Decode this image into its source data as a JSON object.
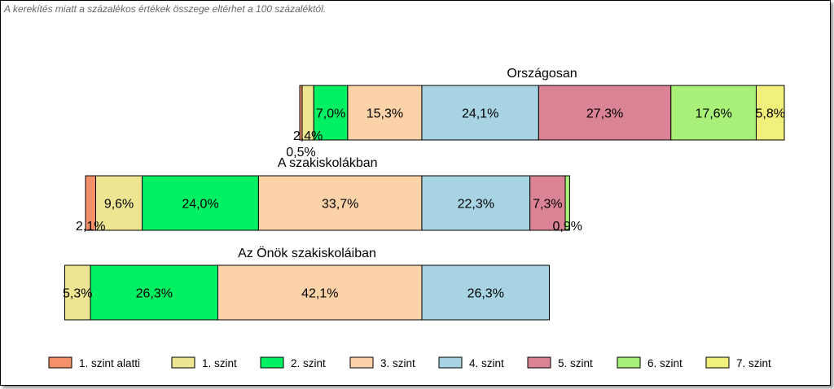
{
  "note": "A kerekítés miatt a  százalékos értékek összege eltérhet a 100 százaléktól.",
  "chart_data": {
    "type": "bar",
    "orientation": "horizontal-stacked",
    "legend_position": "bottom",
    "categories": [
      "Országosan",
      "A szakiskolákban",
      "Az Önök szakiskoláiban"
    ],
    "series": [
      {
        "name": "1. szint alatti",
        "color": "#F4916A",
        "values": [
          0.5,
          2.1,
          0
        ],
        "labels": [
          "0,5%",
          "2,1%",
          ""
        ]
      },
      {
        "name": "1. szint",
        "color": "#EDE591",
        "values": [
          2.4,
          9.6,
          5.3
        ],
        "labels": [
          "2,4%",
          "9,6%",
          "5,3%"
        ]
      },
      {
        "name": "2. szint",
        "color": "#00F064",
        "values": [
          7.0,
          24.0,
          26.3
        ],
        "labels": [
          "7,0%",
          "24,0%",
          "26,3%"
        ]
      },
      {
        "name": "3. szint",
        "color": "#FCD2A9",
        "values": [
          15.3,
          33.7,
          42.1
        ],
        "labels": [
          "15,3%",
          "33,7%",
          "42,1%"
        ]
      },
      {
        "name": "4. szint",
        "color": "#A8D3E3",
        "values": [
          24.1,
          22.3,
          26.3
        ],
        "labels": [
          "24,1%",
          "22,3%",
          "26,3%"
        ]
      },
      {
        "name": "5. szint",
        "color": "#DA8395",
        "values": [
          27.3,
          7.3,
          0
        ],
        "labels": [
          "27,3%",
          "7,3%",
          ""
        ]
      },
      {
        "name": "6. szint",
        "color": "#A9F078",
        "values": [
          17.6,
          0.9,
          0
        ],
        "labels": [
          "17,6%",
          "0,9%",
          ""
        ]
      },
      {
        "name": "7. szint",
        "color": "#F2F07D",
        "values": [
          5.8,
          0,
          0
        ],
        "labels": [
          "5,8%",
          "",
          ""
        ]
      }
    ]
  }
}
